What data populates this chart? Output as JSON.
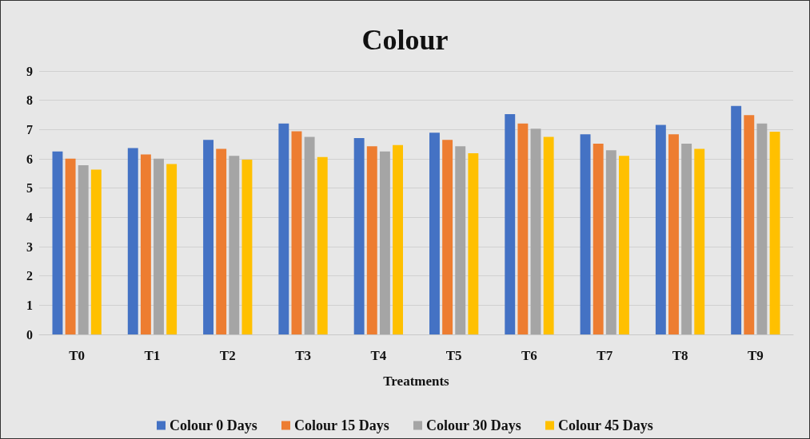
{
  "chart_data": {
    "type": "bar",
    "title": "Colour",
    "xlabel": "Treatments",
    "categories": [
      "T0",
      "T1",
      "T2",
      "T3",
      "T4",
      "T5",
      "T6",
      "T7",
      "T8",
      "T9"
    ],
    "series": [
      {
        "name": "Colour 0 Days",
        "color": "#4472c4",
        "values": [
          6.25,
          6.37,
          6.65,
          7.21,
          6.71,
          6.89,
          7.53,
          6.84,
          7.16,
          7.81
        ]
      },
      {
        "name": "Colour 15 Days",
        "color": "#ed7d31",
        "values": [
          6.01,
          6.15,
          6.34,
          6.94,
          6.43,
          6.65,
          7.21,
          6.52,
          6.84,
          7.49
        ]
      },
      {
        "name": "Colour 30 Days",
        "color": "#a5a5a5",
        "values": [
          5.78,
          6.01,
          6.1,
          6.75,
          6.25,
          6.43,
          7.03,
          6.29,
          6.52,
          7.21
        ]
      },
      {
        "name": "Colour 45 Days",
        "color": "#ffc000",
        "values": [
          5.63,
          5.82,
          5.97,
          6.06,
          6.47,
          6.19,
          6.75,
          6.1,
          6.34,
          6.93
        ]
      }
    ],
    "ylim": [
      0,
      9
    ],
    "yticks": [
      0,
      1,
      2,
      3,
      4,
      5,
      6,
      7,
      8,
      9
    ],
    "grid": "y",
    "legend": "bottom"
  }
}
